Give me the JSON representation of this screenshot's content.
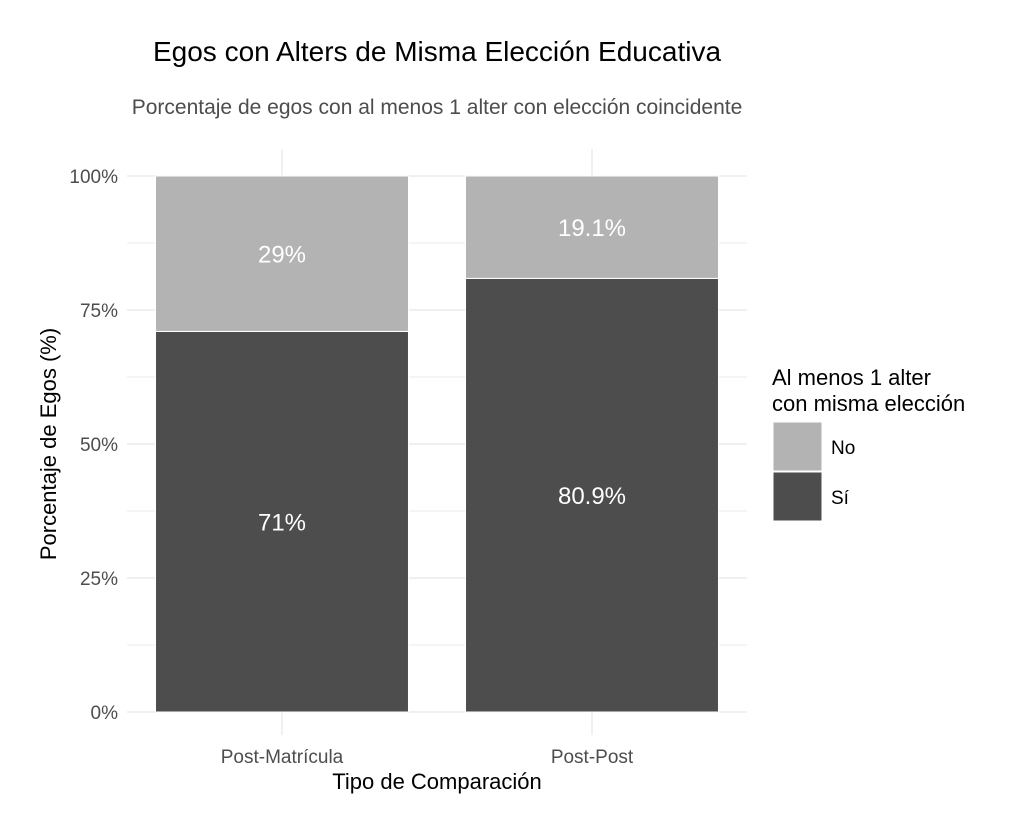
{
  "chart_data": {
    "type": "bar",
    "stacked": true,
    "title": "Egos con Alters de Misma Elección Educativa",
    "subtitle": "Porcentaje de egos con al menos 1 alter con elección coincidente",
    "xlabel": "Tipo de Comparación",
    "ylabel": "Porcentaje de Egos (%)",
    "categories": [
      "Post-Matrícula",
      "Post-Post"
    ],
    "ylim": [
      0,
      100
    ],
    "yticks": [
      0,
      25,
      50,
      75,
      100
    ],
    "ytick_labels": [
      "0%",
      "25%",
      "50%",
      "75%",
      "100%"
    ],
    "series": [
      {
        "name": "Sí",
        "values": [
          71,
          80.9
        ],
        "labels": [
          "71%",
          "80.9%"
        ],
        "color": "#4d4d4d"
      },
      {
        "name": "No",
        "values": [
          29,
          19.1
        ],
        "labels": [
          "29%",
          "19.1%"
        ],
        "color": "#b3b3b3"
      }
    ],
    "legend": {
      "title_lines": [
        "Al menos 1 alter",
        "con misma elección"
      ],
      "order": [
        "No",
        "Sí"
      ],
      "position": "right"
    },
    "grid": true
  }
}
